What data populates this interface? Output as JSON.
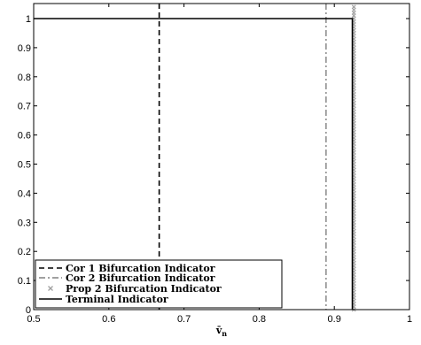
{
  "chart_data": {
    "type": "line",
    "title": "",
    "xlabel": "v̄",
    "xlabel_sub": "n",
    "ylabel": "",
    "xlim": [
      0.5,
      1.0
    ],
    "ylim": [
      0,
      1.05
    ],
    "xticks": [
      "0.5",
      "0.6",
      "0.7",
      "0.8",
      "0.9",
      "1"
    ],
    "yticks": [
      "0",
      "0.1",
      "0.2",
      "0.3",
      "0.4",
      "0.5",
      "0.6",
      "0.7",
      "0.8",
      "0.9",
      "1"
    ],
    "grid": false,
    "legend_position": "bottom-left",
    "series": [
      {
        "name": "Cor 1 Bifurcation Indicator",
        "style": "dashed",
        "color": "#000000",
        "x": 0.667
      },
      {
        "name": "Cor 2 Bifurcation Indicator",
        "style": "dash-dot",
        "color": "#808080",
        "x": 0.889
      },
      {
        "name": "Prop 2 Bifurcation Indicator",
        "style": "marker",
        "color": "#a0a0a0",
        "x": 0.926
      },
      {
        "name": "Terminal Indicator",
        "style": "solid",
        "color": "#000000",
        "x": 0.924
      }
    ],
    "terminal_step": {
      "x": [
        0.5,
        0.924,
        0.924
      ],
      "y": [
        1,
        1,
        0
      ]
    },
    "prop2_marker_top": 1.04
  }
}
